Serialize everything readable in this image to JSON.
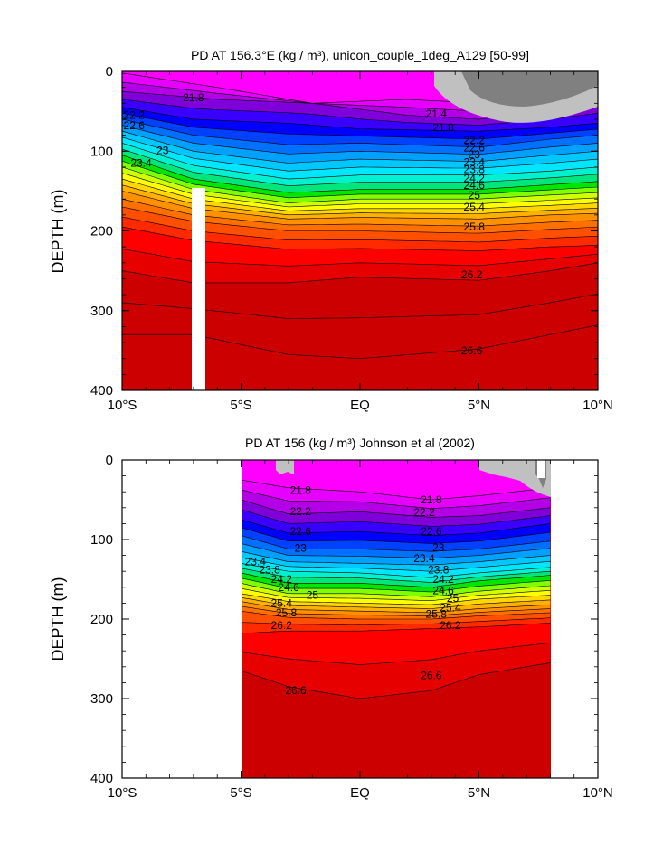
{
  "colors": {
    "bands": [
      "#ff00ff",
      "#e600ff",
      "#b300e6",
      "#8000d9",
      "#3a00ff",
      "#0000ff",
      "#0040ff",
      "#0070ff",
      "#00a0ff",
      "#00c8ff",
      "#00e6ff",
      "#00f0d0",
      "#00e67a",
      "#00e600",
      "#80ff00",
      "#d0ff00",
      "#ffff00",
      "#ffd700",
      "#ffb000",
      "#ff9000",
      "#ff7000",
      "#ff4f00",
      "#ff2a00",
      "#ff0000",
      "#e60000",
      "#cc0000"
    ],
    "gray_light": "#c0c0c0",
    "gray_dark": "#808080"
  },
  "chart_data": [
    {
      "type": "contour",
      "title": "PD AT 156.3°E (kg / m³), unicon_couple_1deg_A129 [50-99]",
      "ylabel": "DEPTH (m)",
      "xlabel": "",
      "xlim": [
        -10,
        10
      ],
      "ylim": [
        400,
        0
      ],
      "x_ticks": [
        "10°S",
        "5°S",
        "EQ",
        "5°N",
        "10°N"
      ],
      "y_ticks": [
        "0",
        "100",
        "200",
        "300",
        "400"
      ],
      "contour_interval": 0.2,
      "levels_min": 21.4,
      "levels_max": 26.6,
      "isopycnals": [
        {
          "level": 21.4,
          "x": [
            -10,
            -6,
            -2,
            2,
            5,
            8,
            10
          ],
          "depth": [
            2,
            20,
            40,
            35,
            40,
            30,
            15
          ]
        },
        {
          "level": 21.8,
          "x": [
            -10,
            -6,
            -2,
            2,
            5,
            8,
            10
          ],
          "depth": [
            25,
            35,
            40,
            55,
            60,
            50,
            40
          ]
        },
        {
          "level": 22.2,
          "x": [
            -10,
            -7,
            -3,
            0,
            5,
            8,
            10
          ],
          "depth": [
            45,
            60,
            65,
            72,
            75,
            70,
            65
          ]
        },
        {
          "level": 22.6,
          "x": [
            -10,
            -7,
            -3,
            0,
            5,
            8,
            10
          ],
          "depth": [
            60,
            80,
            92,
            90,
            95,
            85,
            80
          ]
        },
        {
          "level": 23.0,
          "x": [
            -10,
            -7,
            -3,
            0,
            5,
            8,
            10
          ],
          "depth": [
            75,
            100,
            115,
            110,
            113,
            105,
            100
          ]
        },
        {
          "level": 23.4,
          "x": [
            -10,
            -7,
            -3,
            0,
            5,
            8,
            10
          ],
          "depth": [
            90,
            118,
            135,
            130,
            130,
            125,
            120
          ]
        },
        {
          "level": 23.8,
          "x": [
            -10,
            -7,
            -3,
            0,
            5,
            8,
            10
          ],
          "depth": [
            105,
            135,
            152,
            148,
            148,
            142,
            138
          ]
        },
        {
          "level": 24.2,
          "x": [
            -10,
            -7,
            -3,
            0,
            5,
            8,
            10
          ],
          "depth": [
            120,
            148,
            165,
            160,
            160,
            155,
            152
          ]
        },
        {
          "level": 24.6,
          "x": [
            -10,
            -7,
            -3,
            0,
            5,
            8,
            10
          ],
          "depth": [
            135,
            160,
            175,
            172,
            172,
            168,
            165
          ]
        },
        {
          "level": 25.0,
          "x": [
            -10,
            -7,
            -3,
            0,
            5,
            8,
            10
          ],
          "depth": [
            150,
            172,
            185,
            183,
            185,
            180,
            178
          ]
        },
        {
          "level": 25.4,
          "x": [
            -10,
            -7,
            -3,
            0,
            5,
            8,
            10
          ],
          "depth": [
            170,
            188,
            200,
            200,
            203,
            198,
            195
          ]
        },
        {
          "level": 25.8,
          "x": [
            -10,
            -7,
            -3,
            0,
            5,
            8,
            10
          ],
          "depth": [
            195,
            212,
            223,
            222,
            225,
            220,
            218
          ]
        },
        {
          "level": 26.2,
          "x": [
            -10,
            -7,
            -3,
            0,
            5,
            8,
            10
          ],
          "depth": [
            250,
            265,
            265,
            258,
            262,
            250,
            240
          ]
        },
        {
          "level": 26.6,
          "x": [
            -10,
            -7,
            -3,
            0,
            5,
            8,
            10
          ],
          "depth": [
            330,
            330,
            355,
            360,
            348,
            330,
            318
          ]
        }
      ],
      "contour_labels": [
        "21.8",
        "22.2",
        "22.6",
        "23",
        "23.4",
        "21.4",
        "21.8",
        "22.2",
        "22.6",
        "23",
        "23.4",
        "23.8",
        "24.2",
        "24.6",
        "25",
        "25.4",
        "25.8",
        "26.2",
        "26.6"
      ],
      "masked_band": {
        "x": [
          -7.9,
          -7.4
        ],
        "depth": [
          140,
          400
        ]
      }
    },
    {
      "type": "contour",
      "title": "PD AT 156 (kg / m³) Johnson et al (2002)",
      "ylabel": "DEPTH (m)",
      "xlabel": "",
      "xlim": [
        -10,
        10
      ],
      "ylim": [
        400,
        0
      ],
      "x_ticks": [
        "10°S",
        "5°S",
        "EQ",
        "5°N",
        "10°N"
      ],
      "y_ticks": [
        "0",
        "100",
        "200",
        "300",
        "400"
      ],
      "contour_interval": 0.2,
      "levels_min": 21.4,
      "levels_max": 26.6,
      "data_range_x": [
        -5,
        8
      ],
      "isopycnals": [
        {
          "level": 21.8,
          "x": [
            -5,
            -3,
            0,
            3,
            5,
            8
          ],
          "depth": [
            25,
            35,
            40,
            50,
            45,
            35
          ]
        },
        {
          "level": 22.2,
          "x": [
            -5,
            -3,
            0,
            3,
            5,
            8
          ],
          "depth": [
            50,
            68,
            65,
            72,
            70,
            60
          ]
        },
        {
          "level": 22.6,
          "x": [
            -5,
            -3,
            0,
            3,
            5,
            8
          ],
          "depth": [
            75,
            92,
            90,
            95,
            92,
            80
          ]
        },
        {
          "level": 23.0,
          "x": [
            -5,
            -3,
            0,
            3,
            5,
            8
          ],
          "depth": [
            95,
            112,
            112,
            115,
            112,
            102
          ]
        },
        {
          "level": 23.4,
          "x": [
            -5,
            -3,
            0,
            3,
            5,
            8
          ],
          "depth": [
            115,
            128,
            130,
            132,
            128,
            120
          ]
        },
        {
          "level": 23.8,
          "x": [
            -5,
            -3,
            0,
            3,
            5,
            8
          ],
          "depth": [
            130,
            140,
            142,
            148,
            142,
            135
          ]
        },
        {
          "level": 24.2,
          "x": [
            -5,
            -3,
            0,
            3,
            5,
            8
          ],
          "depth": [
            142,
            155,
            155,
            160,
            152,
            145
          ]
        },
        {
          "level": 24.6,
          "x": [
            -5,
            -3,
            0,
            3,
            5,
            8
          ],
          "depth": [
            155,
            168,
            168,
            172,
            165,
            158
          ]
        },
        {
          "level": 25.0,
          "x": [
            -5,
            -3,
            0,
            3,
            5,
            8
          ],
          "depth": [
            168,
            178,
            180,
            182,
            175,
            170
          ]
        },
        {
          "level": 25.4,
          "x": [
            -5,
            -3,
            0,
            3,
            5,
            8
          ],
          "depth": [
            178,
            188,
            190,
            192,
            187,
            182
          ]
        },
        {
          "level": 25.8,
          "x": [
            -5,
            -3,
            0,
            3,
            5,
            8
          ],
          "depth": [
            190,
            198,
            200,
            200,
            196,
            192
          ]
        },
        {
          "level": 26.2,
          "x": [
            -5,
            -3,
            0,
            3,
            5,
            8
          ],
          "depth": [
            218,
            215,
            215,
            212,
            210,
            205
          ]
        },
        {
          "level": 26.6,
          "x": [
            -5,
            -3,
            0,
            3,
            5,
            8
          ],
          "depth": [
            265,
            285,
            300,
            290,
            270,
            255
          ]
        }
      ],
      "contour_labels": [
        "21.8",
        "22.2",
        "22.6",
        "23",
        "23.4",
        "23.8",
        "24.2",
        "24.6",
        "25",
        "25.4",
        "25.8",
        "26.2",
        "26.6",
        "21.8",
        "22.2",
        "22.6",
        "23",
        "23.4",
        "23.8",
        "24.2",
        "24.6",
        "25",
        "25.4",
        "25.8",
        "26.2",
        "26.6"
      ]
    }
  ]
}
